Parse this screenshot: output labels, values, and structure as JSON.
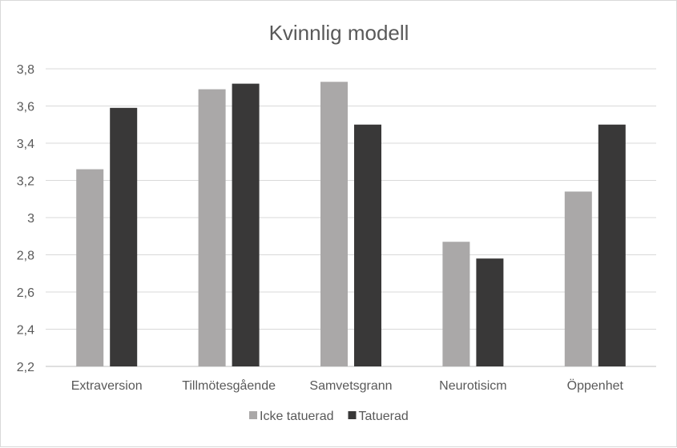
{
  "chart_data": {
    "type": "bar",
    "title": "Kvinnlig modell",
    "xlabel": "",
    "ylabel": "",
    "categories": [
      "Extraversion",
      "Tillmötesgående",
      "Samvetsgrann",
      "Neurotisicm",
      "Öppenhet"
    ],
    "series": [
      {
        "name": "Icke tatuerad",
        "color": "#aaa8a8",
        "values": [
          3.26,
          3.69,
          3.73,
          2.87,
          3.14
        ]
      },
      {
        "name": "Tatuerad",
        "color": "#393838",
        "values": [
          3.59,
          3.72,
          3.5,
          2.78,
          3.5
        ]
      }
    ],
    "ylim": [
      2.2,
      3.8
    ],
    "yticks": [
      "2,2",
      "2,4",
      "2,6",
      "2,8",
      "3",
      "3,2",
      "3,4",
      "3,6",
      "3,8"
    ],
    "grid": true,
    "legend_position": "bottom"
  }
}
